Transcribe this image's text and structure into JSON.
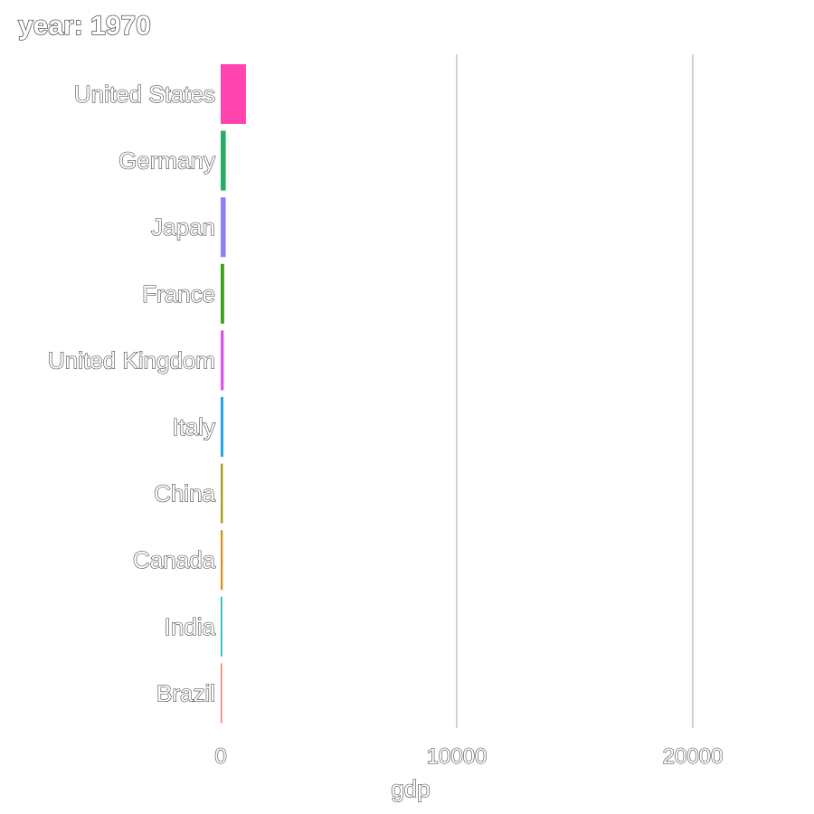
{
  "chart_data": {
    "type": "bar",
    "orientation": "horizontal",
    "title": "year: 1970",
    "xlabel": "gdp",
    "ylabel": "",
    "xlim": [
      0,
      25000
    ],
    "xticks": [
      "0",
      "10000",
      "20000"
    ],
    "xtick_values": [
      0,
      10000,
      20000
    ],
    "grid": true,
    "legend": "none",
    "categories": [
      "United States",
      "Germany",
      "Japan",
      "France",
      "United Kingdom",
      "Italy",
      "China",
      "Canada",
      "India",
      "Brazil"
    ],
    "values": [
      1070,
      215,
      213,
      148,
      130,
      113,
      93,
      88,
      62,
      42
    ],
    "colors": [
      "#ff44b0",
      "#27ad68",
      "#8b80f8",
      "#3ba317",
      "#d65ae8",
      "#1aa3e8",
      "#a8a01c",
      "#d7901e",
      "#12b0b6",
      "#f2746a"
    ]
  }
}
